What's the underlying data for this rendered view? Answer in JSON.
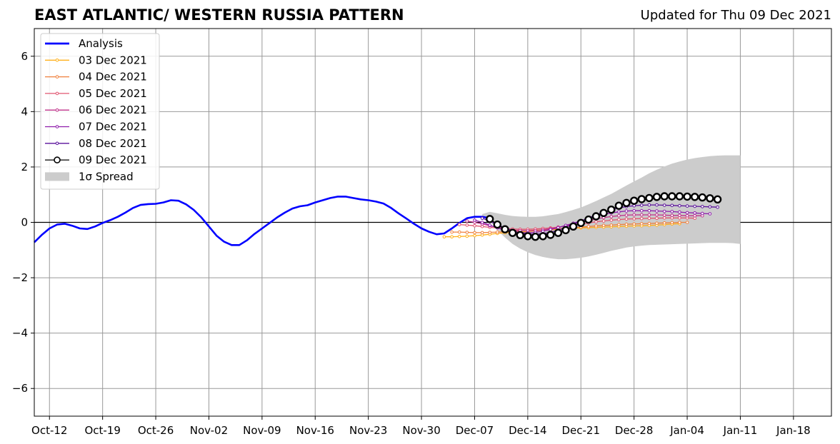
{
  "chart_title": "EAST ATLANTIC/ WESTERN RUSSIA PATTERN",
  "chart_updated": "Updated for Thu 09 Dec 2021",
  "chart_data": {
    "type": "line",
    "title": "EAST ATLANTIC/ WESTERN RUSSIA PATTERN",
    "subtitle": "Updated for Thu 09 Dec 2021",
    "xlabel": "",
    "ylabel": "",
    "x_start": "2021-10-10",
    "xlim": [
      "2021-10-10",
      "2022-01-23"
    ],
    "ylim": [
      -7,
      7
    ],
    "grid": true,
    "legend_position": "top-left",
    "x_ticks": [
      "Oct-12",
      "Oct-19",
      "Oct-26",
      "Nov-02",
      "Nov-09",
      "Nov-16",
      "Nov-23",
      "Nov-30",
      "Dec-07",
      "Dec-14",
      "Dec-21",
      "Dec-28",
      "Jan-04",
      "Jan-11",
      "Jan-18"
    ],
    "x_tick_dates": [
      "2021-10-12",
      "2021-10-19",
      "2021-10-26",
      "2021-11-02",
      "2021-11-09",
      "2021-11-16",
      "2021-11-23",
      "2021-11-30",
      "2021-12-07",
      "2021-12-14",
      "2021-12-21",
      "2021-12-28",
      "2022-01-04",
      "2022-01-11",
      "2022-01-18"
    ],
    "y_ticks": [
      -6,
      -4,
      -2,
      0,
      2,
      4,
      6
    ],
    "y_tick_labels": [
      "−6",
      "−4",
      "−2",
      "0",
      "2",
      "4",
      "6"
    ],
    "analysis": {
      "name": "Analysis",
      "color": "#0000ff",
      "start": "2021-10-10",
      "values": [
        -0.72,
        -0.45,
        -0.22,
        -0.08,
        -0.05,
        -0.12,
        -0.22,
        -0.24,
        -0.15,
        -0.02,
        0.08,
        0.2,
        0.35,
        0.52,
        0.63,
        0.66,
        0.67,
        0.72,
        0.8,
        0.78,
        0.65,
        0.45,
        0.18,
        -0.15,
        -0.48,
        -0.7,
        -0.82,
        -0.82,
        -0.65,
        -0.42,
        -0.22,
        -0.02,
        0.18,
        0.35,
        0.5,
        0.58,
        0.62,
        0.72,
        0.8,
        0.88,
        0.93,
        0.93,
        0.88,
        0.83,
        0.8,
        0.75,
        0.68,
        0.52,
        0.32,
        0.14,
        -0.05,
        -0.22,
        -0.34,
        -0.43,
        -0.4,
        -0.22,
        -0.02,
        0.15,
        0.2,
        0.2,
        0.15
      ]
    },
    "forecasts": [
      {
        "name": "03 Dec 2021",
        "color": "#ffb01a",
        "start": "2021-12-03",
        "values": [
          -0.52,
          -0.52,
          -0.51,
          -0.5,
          -0.48,
          -0.46,
          -0.43,
          -0.4,
          -0.38,
          -0.36,
          -0.35,
          -0.33,
          -0.31,
          -0.29,
          -0.27,
          -0.25,
          -0.23,
          -0.21,
          -0.2,
          -0.19,
          -0.18,
          -0.17,
          -0.16,
          -0.15,
          -0.14,
          -0.13,
          -0.12,
          -0.11,
          -0.1,
          -0.08,
          -0.06,
          -0.05
        ]
      },
      {
        "name": "04 Dec 2021",
        "color": "#f0803c",
        "start": "2021-12-04",
        "values": [
          -0.35,
          -0.35,
          -0.36,
          -0.37,
          -0.37,
          -0.36,
          -0.35,
          -0.34,
          -0.33,
          -0.31,
          -0.3,
          -0.28,
          -0.27,
          -0.25,
          -0.23,
          -0.21,
          -0.19,
          -0.17,
          -0.15,
          -0.13,
          -0.11,
          -0.1,
          -0.08,
          -0.07,
          -0.06,
          -0.05,
          -0.04,
          -0.03,
          -0.02,
          -0.01,
          0.0,
          0.0
        ]
      },
      {
        "name": "05 Dec 2021",
        "color": "#e05570",
        "start": "2021-12-05",
        "values": [
          -0.08,
          -0.1,
          -0.12,
          -0.15,
          -0.18,
          -0.2,
          -0.22,
          -0.24,
          -0.25,
          -0.25,
          -0.24,
          -0.22,
          -0.2,
          -0.17,
          -0.14,
          -0.1,
          -0.06,
          -0.02,
          0.02,
          0.05,
          0.08,
          0.1,
          0.12,
          0.13,
          0.14,
          0.15,
          0.15,
          0.16,
          0.16,
          0.16,
          0.16,
          0.15
        ]
      },
      {
        "name": "06 Dec 2021",
        "color": "#c0308a",
        "start": "2021-12-06",
        "values": [
          0.05,
          0.0,
          -0.06,
          -0.12,
          -0.18,
          -0.24,
          -0.28,
          -0.3,
          -0.31,
          -0.3,
          -0.27,
          -0.23,
          -0.18,
          -0.12,
          -0.06,
          0.0,
          0.06,
          0.12,
          0.17,
          0.21,
          0.24,
          0.26,
          0.27,
          0.27,
          0.27,
          0.27,
          0.26,
          0.25,
          0.25,
          0.24,
          0.24,
          0.24
        ]
      },
      {
        "name": "07 Dec 2021",
        "color": "#8e1cab",
        "start": "2021-12-07",
        "values": [
          0.08,
          0.0,
          -0.1,
          -0.2,
          -0.28,
          -0.34,
          -0.37,
          -0.38,
          -0.36,
          -0.32,
          -0.26,
          -0.19,
          -0.11,
          -0.03,
          0.06,
          0.14,
          0.22,
          0.29,
          0.34,
          0.38,
          0.41,
          0.42,
          0.42,
          0.42,
          0.41,
          0.4,
          0.39,
          0.37,
          0.35,
          0.34,
          0.32,
          0.31
        ]
      },
      {
        "name": "08 Dec 2021",
        "color": "#5a119b",
        "start": "2021-12-08",
        "values": [
          0.15,
          0.04,
          -0.08,
          -0.2,
          -0.3,
          -0.38,
          -0.42,
          -0.43,
          -0.41,
          -0.36,
          -0.28,
          -0.18,
          -0.07,
          0.05,
          0.16,
          0.27,
          0.37,
          0.45,
          0.52,
          0.57,
          0.6,
          0.62,
          0.63,
          0.63,
          0.62,
          0.61,
          0.6,
          0.59,
          0.58,
          0.57,
          0.56,
          0.55
        ]
      },
      {
        "name": "09 Dec 2021",
        "color": "#000000",
        "start": "2021-12-09",
        "values": [
          0.12,
          -0.08,
          -0.25,
          -0.38,
          -0.46,
          -0.5,
          -0.52,
          -0.5,
          -0.45,
          -0.38,
          -0.28,
          -0.15,
          -0.02,
          0.1,
          0.22,
          0.34,
          0.46,
          0.6,
          0.7,
          0.78,
          0.84,
          0.88,
          0.92,
          0.94,
          0.94,
          0.94,
          0.93,
          0.92,
          0.9,
          0.87,
          0.83
        ]
      }
    ],
    "spread": {
      "name": "1σ Spread",
      "color": "#cccccc",
      "start": "2021-12-08",
      "upper": [
        0.3,
        0.38,
        0.33,
        0.27,
        0.23,
        0.21,
        0.2,
        0.2,
        0.22,
        0.26,
        0.3,
        0.37,
        0.45,
        0.54,
        0.65,
        0.77,
        0.9,
        1.03,
        1.18,
        1.33,
        1.48,
        1.62,
        1.77,
        1.9,
        2.02,
        2.12,
        2.2,
        2.27,
        2.32,
        2.36,
        2.39,
        2.41,
        2.42,
        2.42,
        2.42
      ],
      "lower": [
        0.2,
        0.05,
        -0.28,
        -0.55,
        -0.78,
        -0.95,
        -1.08,
        -1.18,
        -1.25,
        -1.3,
        -1.33,
        -1.33,
        -1.31,
        -1.28,
        -1.23,
        -1.17,
        -1.1,
        -1.03,
        -0.97,
        -0.91,
        -0.87,
        -0.84,
        -0.82,
        -0.81,
        -0.8,
        -0.79,
        -0.78,
        -0.77,
        -0.76,
        -0.75,
        -0.74,
        -0.74,
        -0.74,
        -0.75,
        -0.78
      ]
    },
    "legend": [
      "Analysis",
      "03 Dec 2021",
      "04 Dec 2021",
      "05 Dec 2021",
      "06 Dec 2021",
      "07 Dec 2021",
      "08 Dec 2021",
      "09 Dec 2021",
      "1σ Spread"
    ]
  }
}
